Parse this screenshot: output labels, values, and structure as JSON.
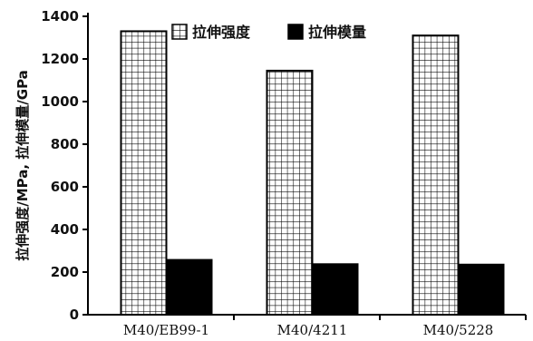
{
  "chart_data": {
    "type": "bar",
    "categories": [
      "M40/EB99-1",
      "M40/4211",
      "M40/5228"
    ],
    "series": [
      {
        "name": "拉伸强度",
        "values": [
          1330,
          1145,
          1310
        ],
        "color": "#ffffff",
        "pattern": "grid"
      },
      {
        "name": "拉伸模量",
        "values": [
          257,
          237,
          235
        ],
        "color": "#000000",
        "pattern": "solid"
      }
    ],
    "ylabel": "拉伸强度/MPa, 拉伸模量/GPa",
    "xlabel": "",
    "ylim": [
      0,
      1400
    ],
    "yticks": [
      0,
      200,
      400,
      600,
      800,
      1000,
      1200,
      1400
    ],
    "grid": false,
    "legend": "top"
  }
}
